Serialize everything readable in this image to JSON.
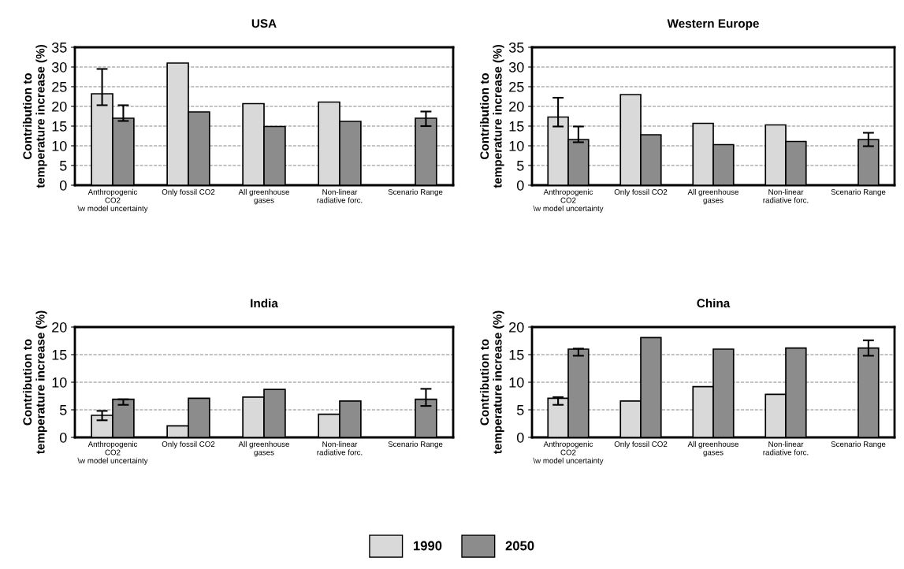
{
  "chart_data": [
    {
      "type": "bar",
      "title": "USA",
      "ylabel": "Contribution to\ntemperature increase (%)",
      "categories": [
        "Anthropogenic\nCO2\n\\w model uncertainty",
        "Only fossil CO2",
        "All greenhouse\ngases",
        "Non-linear\nradiative forc.",
        "Scenario Range"
      ],
      "ylim": [
        0,
        35
      ],
      "yticks": [
        0,
        5,
        10,
        15,
        20,
        25,
        30,
        35
      ],
      "grid": "y",
      "legend": "bottom",
      "series": [
        {
          "name": "1990",
          "color": "#d9d9d9",
          "values": [
            23.2,
            31,
            20.7,
            21.1,
            null
          ],
          "errors": [
            [
              20.3,
              29.5
            ],
            null,
            null,
            null,
            null
          ]
        },
        {
          "name": "2050",
          "color": "#8c8c8c",
          "values": [
            17,
            18.6,
            14.9,
            16.2,
            17
          ],
          "errors": [
            [
              16.3,
              20.3
            ],
            null,
            null,
            null,
            [
              15,
              18.7
            ]
          ]
        }
      ]
    },
    {
      "type": "bar",
      "title": "Western Europe",
      "ylabel": "Contribution to\ntemperature increase (%)",
      "categories": [
        "Anthropogenic\nCO2\n\\w model uncertainty",
        "Only fossil CO2",
        "All greenhouse\ngases",
        "Non-linear\nradiative forc.",
        "Scenario Range"
      ],
      "ylim": [
        0,
        35
      ],
      "yticks": [
        0,
        5,
        10,
        15,
        20,
        25,
        30,
        35
      ],
      "grid": "y",
      "legend": "bottom",
      "series": [
        {
          "name": "1990",
          "color": "#d9d9d9",
          "values": [
            17.3,
            23,
            15.7,
            15.3,
            null
          ],
          "errors": [
            [
              14.9,
              22.2
            ],
            null,
            null,
            null,
            null
          ]
        },
        {
          "name": "2050",
          "color": "#8c8c8c",
          "values": [
            11.6,
            12.8,
            10.3,
            11.1,
            11.6
          ],
          "errors": [
            [
              10.9,
              14.9
            ],
            null,
            null,
            null,
            [
              9.9,
              13.3
            ]
          ]
        }
      ]
    },
    {
      "type": "bar",
      "title": "India",
      "ylabel": "Contribution to\ntemperature increase (%)",
      "categories": [
        "Anthropogenic\nCO2\n\\w model uncertainty",
        "Only fossil CO2",
        "All greenhouse\ngases",
        "Non-linear\nradiative forc.",
        "Scenario Range"
      ],
      "ylim": [
        0,
        20
      ],
      "yticks": [
        0,
        5,
        10,
        15,
        20
      ],
      "grid": "y",
      "legend": "bottom",
      "series": [
        {
          "name": "1990",
          "color": "#d9d9d9",
          "values": [
            4.0,
            2.1,
            7.3,
            4.2,
            null
          ],
          "errors": [
            [
              3.1,
              4.8
            ],
            null,
            null,
            null,
            null
          ]
        },
        {
          "name": "2050",
          "color": "#8c8c8c",
          "values": [
            6.9,
            7.1,
            8.7,
            6.6,
            6.9
          ],
          "errors": [
            [
              5.9,
              6.9
            ],
            null,
            null,
            null,
            [
              5.7,
              8.8
            ]
          ]
        }
      ]
    },
    {
      "type": "bar",
      "title": "China",
      "ylabel": "Contribution to\ntemperature increase (%)",
      "categories": [
        "Anthropogenic\nCO2\n\\w model uncertainty",
        "Only fossil CO2",
        "All greenhouse\ngases",
        "Non-linear\nradiative forc.",
        "Scenario Range"
      ],
      "ylim": [
        0,
        20
      ],
      "yticks": [
        0,
        5,
        10,
        15,
        20
      ],
      "grid": "y",
      "legend": "bottom",
      "series": [
        {
          "name": "1990",
          "color": "#d9d9d9",
          "values": [
            7.1,
            6.6,
            9.2,
            7.8,
            null
          ],
          "errors": [
            [
              5.9,
              7.3
            ],
            null,
            null,
            null,
            null
          ]
        },
        {
          "name": "2050",
          "color": "#8c8c8c",
          "values": [
            16,
            18.1,
            16,
            16.2,
            16.2
          ],
          "errors": [
            [
              14.8,
              16.1
            ],
            null,
            null,
            null,
            [
              14.8,
              17.6
            ]
          ]
        }
      ]
    }
  ]
}
